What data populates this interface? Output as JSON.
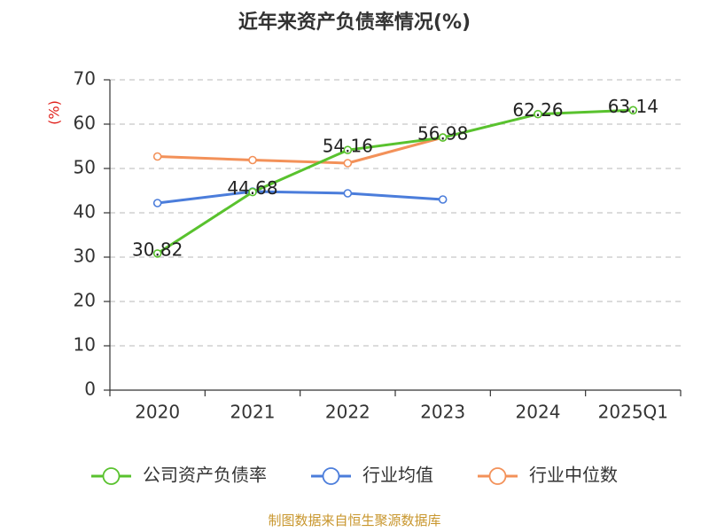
{
  "footer": "制图数据来自恒生聚源数据库",
  "chart_data": {
    "type": "line",
    "title": "近年来资产负债率情况(%)",
    "xlabel": "",
    "ylabel": "(%)",
    "categories": [
      "2020",
      "2021",
      "2022",
      "2023",
      "2024",
      "2025Q1"
    ],
    "ylim": [
      0,
      70
    ],
    "yticks": [
      0,
      10,
      20,
      30,
      40,
      50,
      60,
      70
    ],
    "grid": true,
    "legend": "bottom",
    "series": [
      {
        "name": "公司资产负债率",
        "color": "#59c22e",
        "data_labels": true,
        "values": [
          30.82,
          44.68,
          54.16,
          56.98,
          62.26,
          63.14
        ]
      },
      {
        "name": "行业均值",
        "color": "#4b7ddb",
        "data_labels": false,
        "values": [
          42.2,
          44.8,
          44.4,
          43.0,
          null,
          null
        ]
      },
      {
        "name": "行业中位数",
        "color": "#f39159",
        "data_labels": false,
        "values": [
          52.7,
          51.9,
          51.2,
          57.0,
          null,
          null
        ]
      }
    ]
  }
}
